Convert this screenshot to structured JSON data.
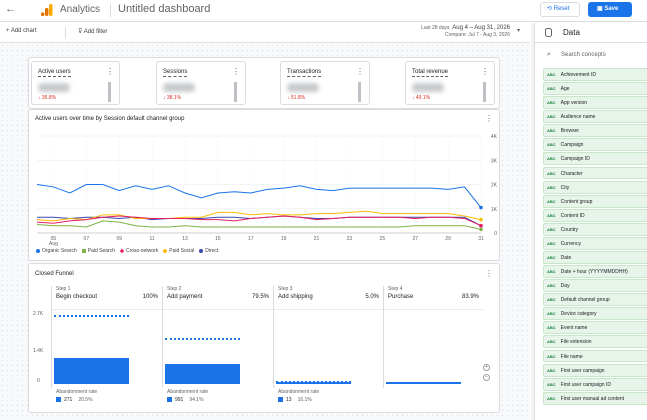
{
  "header": {
    "app_name": "Analytics",
    "dashboard_title": "Untitled dashboard",
    "reset_label": "Reset",
    "save_label": "Save"
  },
  "toolbar": {
    "add_chart": "+ Add chart",
    "add_filter": "Add filter",
    "date_prefix": "Last 28 days",
    "date_range": "Aug 4 – Aug 31, 2026",
    "compare": "Compare: Jul 7 - Aug 3, 2026"
  },
  "kpis": [
    {
      "label": "Active users",
      "change": "↓ 36.8%"
    },
    {
      "label": "Sessions",
      "change": "↓ 38.1%"
    },
    {
      "label": "Transactions",
      "change": "↓ 51.8%"
    },
    {
      "label": "Total revenue",
      "change": "↓ 49.1%"
    }
  ],
  "chart_title": "Active users over time by Session default channel group",
  "chart_data": {
    "type": "line",
    "x": [
      "04",
      "05",
      "06",
      "07",
      "08",
      "09",
      "10",
      "11",
      "12",
      "13",
      "14",
      "15",
      "16",
      "17",
      "18",
      "19",
      "20",
      "21",
      "22",
      "23",
      "24",
      "25",
      "26",
      "27",
      "28",
      "29",
      "30",
      "31"
    ],
    "x_tick_labels": [
      "05",
      "07",
      "09",
      "11",
      "13",
      "15",
      "17",
      "19",
      "21",
      "23",
      "25",
      "27",
      "29",
      "31"
    ],
    "x_sub_label": "Aug",
    "y_tick_labels": [
      "0",
      "1K",
      "2K",
      "3K",
      "4K"
    ],
    "ylim": [
      0,
      4000
    ],
    "series": [
      {
        "name": "Organic Search",
        "color": "#1a73e8",
        "marker": "circle",
        "values": [
          2000,
          1900,
          1650,
          2000,
          2000,
          1750,
          1950,
          1800,
          1950,
          1650,
          1450,
          1650,
          1700,
          1650,
          1800,
          1850,
          1950,
          1800,
          1750,
          1850,
          1850,
          1850,
          1850,
          1850,
          1850,
          1800,
          1900,
          1050
        ]
      },
      {
        "name": "Paid Search",
        "color": "#7cb342",
        "marker": "square",
        "values": [
          350,
          300,
          300,
          250,
          500,
          450,
          300,
          250,
          250,
          300,
          250,
          250,
          250,
          250,
          250,
          250,
          250,
          250,
          250,
          250,
          250,
          250,
          250,
          300,
          300,
          300,
          300,
          150
        ]
      },
      {
        "name": "Cross-network",
        "color": "#e91e63",
        "marker": "diamond",
        "values": [
          450,
          400,
          500,
          550,
          650,
          700,
          650,
          600,
          600,
          600,
          550,
          550,
          500,
          600,
          650,
          700,
          650,
          550,
          600,
          650,
          650,
          650,
          650,
          600,
          650,
          650,
          600,
          300
        ]
      },
      {
        "name": "Paid Social",
        "color": "#fbbc04",
        "marker": "triangle-down",
        "values": [
          550,
          500,
          600,
          550,
          750,
          750,
          600,
          600,
          600,
          650,
          650,
          850,
          850,
          750,
          800,
          750,
          750,
          800,
          800,
          850,
          900,
          800,
          800,
          800,
          800,
          800,
          700,
          550
        ]
      },
      {
        "name": "Direct",
        "color": "#3949ab",
        "marker": "triangle-up",
        "values": [
          650,
          650,
          600,
          650,
          650,
          600,
          650,
          550,
          600,
          600,
          600,
          650,
          650,
          600,
          650,
          700,
          650,
          600,
          600,
          650,
          650,
          650,
          650,
          650,
          650,
          650,
          650,
          300
        ]
      }
    ]
  },
  "funnel": {
    "title": "Closed Funnel",
    "y_ticks": [
      "2.7K",
      "1.4K",
      "0"
    ],
    "steps": [
      {
        "step": "Step 1",
        "name": "Begin checkout",
        "pct": "100%",
        "bar": 0.35,
        "dash": 0.95,
        "abandon_label": "Abandonment rate",
        "abandon_count": "271",
        "abandon_rate": "20.5%"
      },
      {
        "step": "Step 2",
        "name": "Add payment",
        "pct": "79.5%",
        "bar": 0.28,
        "dash": 0.63,
        "abandon_label": "Abandonment rate",
        "abandon_count": "991",
        "abandon_rate": "94.1%"
      },
      {
        "step": "Step 3",
        "name": "Add shipping",
        "pct": "5.0%",
        "bar": 0.02,
        "dash": 0.04,
        "abandon_label": "Abandonment rate",
        "abandon_count": "13",
        "abandon_rate": "16.1%"
      },
      {
        "step": "Step 4",
        "name": "Purchase",
        "pct": "83.9%",
        "bar": 0.02,
        "dash": 0.03,
        "abandon_label": "",
        "abandon_count": "",
        "abandon_rate": ""
      }
    ]
  },
  "sidebar": {
    "title": "Data",
    "search_placeholder": "Search concepts",
    "type_badge": "ABC",
    "concepts": [
      "Achievement ID",
      "Age",
      "App version",
      "Audience name",
      "Browser",
      "Campaign",
      "Campaign ID",
      "Character",
      "City",
      "Content group",
      "Content ID",
      "Country",
      "Currency",
      "Date",
      "Date + hour (YYYYMMDDHH)",
      "Day",
      "Default channel group",
      "Device category",
      "Event name",
      "File extension",
      "File name",
      "First user campaign",
      "First user campaign ID",
      "First user manual ad content"
    ]
  }
}
